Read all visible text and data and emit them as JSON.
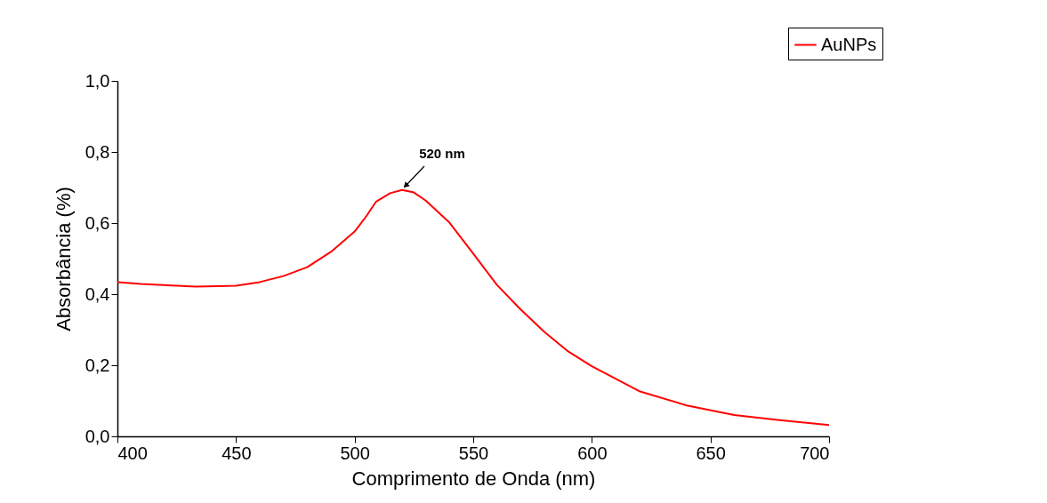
{
  "chart_data": {
    "type": "line",
    "xlabel": "Comprimento de Onda (nm)",
    "ylabel": "Absorbância (%)",
    "x": [
      400,
      410,
      425,
      433,
      450,
      460,
      470,
      480,
      490,
      500,
      505,
      509,
      510,
      515,
      520,
      525,
      530,
      540,
      550,
      560,
      570,
      580,
      590,
      600,
      620,
      640,
      660,
      680,
      700
    ],
    "series": [
      {
        "name": "AuNPs",
        "color": "#ff0000",
        "values": [
          0.434,
          0.429,
          0.424,
          0.421,
          0.424,
          0.434,
          0.451,
          0.476,
          0.519,
          0.576,
          0.62,
          0.66,
          0.664,
          0.684,
          0.693,
          0.686,
          0.663,
          0.601,
          0.514,
          0.426,
          0.357,
          0.294,
          0.239,
          0.197,
          0.127,
          0.087,
          0.06,
          0.045,
          0.032
        ]
      }
    ],
    "xlim": [
      400,
      700
    ],
    "xticks": [
      400,
      450,
      500,
      550,
      600,
      650,
      700
    ],
    "ylim": [
      0,
      1
    ],
    "yticks": [
      {
        "value": 0,
        "label": "0,0"
      },
      {
        "value": 0.2,
        "label": "0,2"
      },
      {
        "value": 0.4,
        "label": "0,4"
      },
      {
        "value": 0.6,
        "label": "0,6"
      },
      {
        "value": 0.8,
        "label": "0,8"
      },
      {
        "value": 1,
        "label": "1,0"
      }
    ],
    "annotations": [
      {
        "text": "520 nm",
        "x": 520,
        "y": 0.695
      }
    ],
    "legend": "top right",
    "grid": false,
    "marker": "none",
    "line_style": "solid"
  }
}
